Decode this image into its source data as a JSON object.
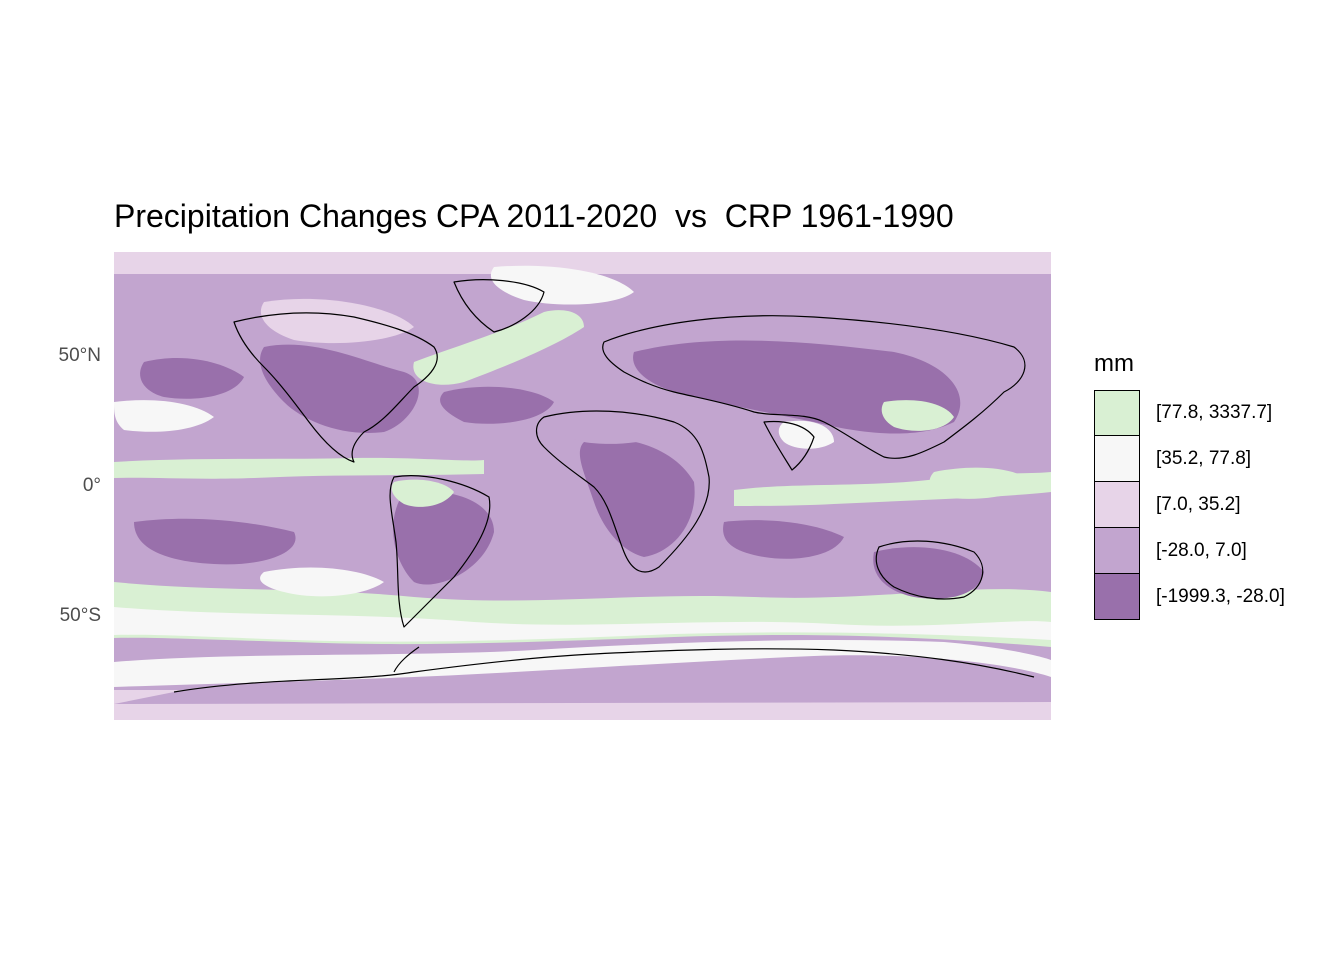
{
  "title": "Precipitation Changes CPA 2011-2020  vs  CRP 1961-1990",
  "axis": {
    "lat_labels": [
      {
        "text": "50°N",
        "lat": 50
      },
      {
        "text": "0°",
        "lat": 0
      },
      {
        "text": "50°S",
        "lat": -50
      }
    ],
    "lat_range": [
      -90,
      90
    ],
    "lon_range": [
      -180,
      180
    ]
  },
  "legend": {
    "title": "mm",
    "items": [
      {
        "label": "[77.8, 3337.7]",
        "color": "#d9f0d3"
      },
      {
        "label": "[35.2, 77.8]",
        "color": "#f7f7f7"
      },
      {
        "label": "[7.0, 35.2]",
        "color": "#e7d4e8"
      },
      {
        "label": "[-28.0, 7.0]",
        "color": "#c2a5cf"
      },
      {
        "label": "[-1999.3, -28.0]",
        "color": "#9970ab"
      }
    ]
  }
}
